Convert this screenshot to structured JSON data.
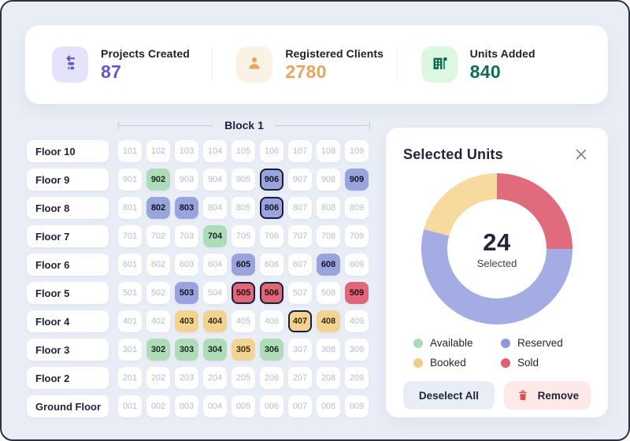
{
  "stats": {
    "items": [
      {
        "label": "Projects Created",
        "value": "87",
        "icon": "projects-icon",
        "accent": "#6456cd",
        "tile": "#e5e2fb"
      },
      {
        "label": "Registered Clients",
        "value": "2780",
        "icon": "person-icon",
        "accent": "#e8a55e",
        "tile": "#faf3e5"
      },
      {
        "label": "Units Added",
        "value": "840",
        "icon": "building-icon",
        "accent": "#0e6e55",
        "tile": "#ddf7e1"
      }
    ]
  },
  "block": {
    "title": "Block 1",
    "floors": [
      {
        "label": "Floor 10",
        "units": [
          "101",
          "102",
          "103",
          "104",
          "105",
          "106",
          "107",
          "108",
          "109"
        ]
      },
      {
        "label": "Floor 9",
        "units": [
          "901",
          "902",
          "903",
          "904",
          "905",
          "906",
          "907",
          "908",
          "909"
        ]
      },
      {
        "label": "Floor 8",
        "units": [
          "801",
          "802",
          "803",
          "804",
          "805",
          "806",
          "807",
          "808",
          "809"
        ]
      },
      {
        "label": "Floor 7",
        "units": [
          "701",
          "702",
          "703",
          "704",
          "705",
          "706",
          "707",
          "708",
          "709"
        ]
      },
      {
        "label": "Floor 6",
        "units": [
          "601",
          "602",
          "603",
          "604",
          "605",
          "606",
          "607",
          "608",
          "609"
        ]
      },
      {
        "label": "Floor 5",
        "units": [
          "501",
          "502",
          "503",
          "504",
          "505",
          "506",
          "507",
          "508",
          "509"
        ]
      },
      {
        "label": "Floor 4",
        "units": [
          "401",
          "402",
          "403",
          "404",
          "405",
          "406",
          "407",
          "408",
          "409"
        ]
      },
      {
        "label": "Floor 3",
        "units": [
          "301",
          "302",
          "303",
          "304",
          "305",
          "306",
          "307",
          "308",
          "309"
        ]
      },
      {
        "label": "Floor 2",
        "units": [
          "201",
          "202",
          "203",
          "204",
          "205",
          "206",
          "207",
          "208",
          "209"
        ]
      },
      {
        "label": "Ground Floor",
        "units": [
          "001",
          "002",
          "003",
          "004",
          "005",
          "006",
          "007",
          "008",
          "009"
        ]
      }
    ],
    "unit_status": {
      "902": "available",
      "906": "reserved",
      "909": "reserved",
      "802": "reserved",
      "803": "reserved",
      "806": "reserved",
      "704": "available",
      "605": "reserved",
      "608": "reserved",
      "503": "reserved",
      "505": "sold",
      "506": "sold",
      "509": "sold",
      "403": "booked",
      "404": "booked",
      "407": "booked",
      "408": "booked",
      "302": "available",
      "303": "available",
      "304": "available",
      "305": "booked",
      "306": "available"
    },
    "selected_units": [
      "906",
      "806",
      "505",
      "506",
      "407"
    ]
  },
  "status_colors": {
    "available": "#aedcb9",
    "reserved": "#99a3dc",
    "booked": "#f3d392",
    "sold": "#e0667a",
    "selected_border": "#171d36"
  },
  "panel": {
    "title": "Selected Units",
    "buttons": {
      "deselect": "Deselect All",
      "remove": "Remove"
    }
  },
  "chart_data": {
    "type": "pie",
    "title": "Selected Units",
    "center_value": "24",
    "center_label": "Selected",
    "total": 24,
    "series": [
      {
        "name": "Sold",
        "value": 6,
        "color": "#e06b7d"
      },
      {
        "name": "Reserved",
        "value": 13,
        "color": "#a3ade4"
      },
      {
        "name": "Booked",
        "value": 5,
        "color": "#f7db9e"
      }
    ],
    "start_angle_deg": 0,
    "donut_hole_ratio": 0.65,
    "legend_position": "bottom",
    "legend": [
      {
        "label": "Available",
        "color": "#a7dbb3"
      },
      {
        "label": "Reserved",
        "color": "#8e9ad8"
      },
      {
        "label": "Booked",
        "color": "#f0cc84"
      },
      {
        "label": "Sold",
        "color": "#df5e74"
      }
    ]
  }
}
